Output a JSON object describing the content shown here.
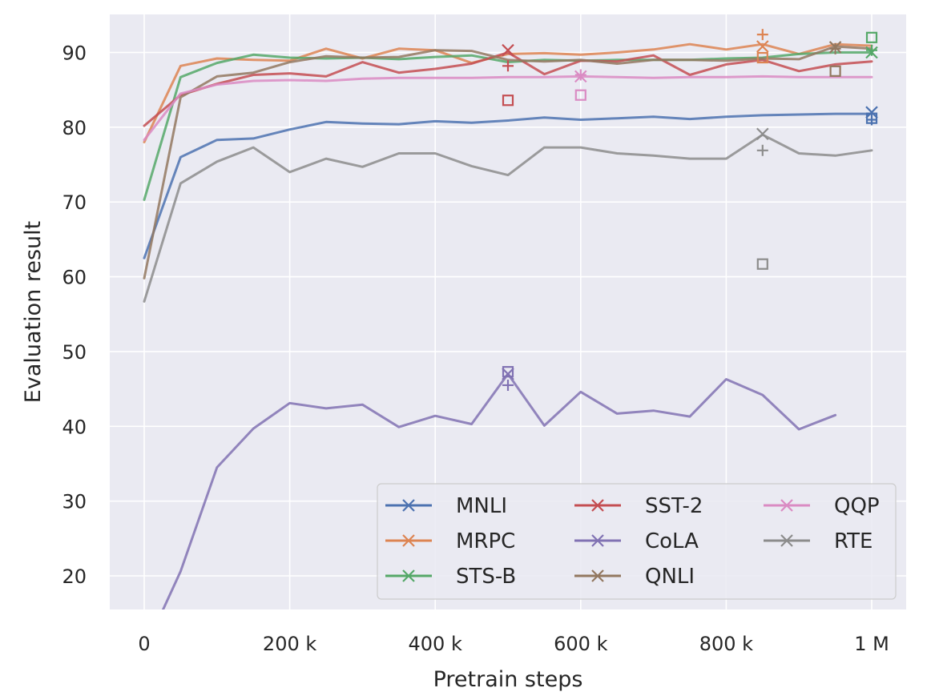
{
  "chart_data": {
    "type": "line",
    "xlabel": "Pretrain steps",
    "ylabel": "Evaluation result",
    "xlim": [
      -50000,
      1050000
    ],
    "ylim": [
      15,
      95
    ],
    "grid": true,
    "legend_position": "lower right",
    "x_ticks": [
      {
        "value": 0,
        "label": "0"
      },
      {
        "value": 200000,
        "label": "200 k"
      },
      {
        "value": 400000,
        "label": "400 k"
      },
      {
        "value": 600000,
        "label": "600 k"
      },
      {
        "value": 800000,
        "label": "800 k"
      },
      {
        "value": 1000000,
        "label": "1 M"
      }
    ],
    "y_ticks": [
      {
        "value": 20,
        "label": "20"
      },
      {
        "value": 30,
        "label": "30"
      },
      {
        "value": 40,
        "label": "40"
      },
      {
        "value": 50,
        "label": "50"
      },
      {
        "value": 60,
        "label": "60"
      },
      {
        "value": 70,
        "label": "70"
      },
      {
        "value": 80,
        "label": "80"
      },
      {
        "value": 90,
        "label": "90"
      }
    ],
    "x": [
      0,
      50000,
      100000,
      150000,
      200000,
      250000,
      300000,
      350000,
      400000,
      450000,
      500000,
      550000,
      600000,
      650000,
      700000,
      750000,
      800000,
      850000,
      900000,
      950000,
      1000000
    ],
    "series": [
      {
        "name": "MNLI",
        "color": "#4c72b0",
        "values": [
          62.5,
          76.0,
          78.3,
          78.5,
          79.7,
          80.7,
          80.5,
          80.4,
          80.8,
          80.6,
          80.9,
          81.3,
          81.0,
          81.2,
          81.4,
          81.1,
          81.4,
          81.6,
          81.7,
          81.8,
          81.8
        ],
        "markers": [
          {
            "x": 1000000,
            "y": 82.0,
            "shape": "x"
          },
          {
            "x": 1000000,
            "y": 81.2,
            "shape": "square"
          },
          {
            "x": 1000000,
            "y": 81.0,
            "shape": "plus"
          }
        ]
      },
      {
        "name": "MRPC",
        "color": "#dd8452",
        "values": [
          78.0,
          88.2,
          89.2,
          89.0,
          88.9,
          90.5,
          89.2,
          90.5,
          90.3,
          88.6,
          89.8,
          89.9,
          89.7,
          90.0,
          90.4,
          91.1,
          90.4,
          91.1,
          89.8,
          91.1,
          90.9
        ],
        "markers": [
          {
            "x": 850000,
            "y": 90.8,
            "shape": "x"
          },
          {
            "x": 850000,
            "y": 89.3,
            "shape": "square"
          },
          {
            "x": 850000,
            "y": 92.4,
            "shape": "plus"
          }
        ]
      },
      {
        "name": "STS-B",
        "color": "#55a868",
        "values": [
          70.3,
          86.7,
          88.6,
          89.7,
          89.3,
          89.2,
          89.3,
          89.1,
          89.4,
          89.6,
          88.7,
          89.0,
          88.9,
          89.0,
          89.0,
          89.0,
          89.2,
          89.3,
          89.8,
          90.0,
          90.0
        ],
        "markers": [
          {
            "x": 1000000,
            "y": 90.0,
            "shape": "x"
          },
          {
            "x": 1000000,
            "y": 92.0,
            "shape": "square"
          },
          {
            "x": 1000000,
            "y": 90.3,
            "shape": "plus"
          }
        ]
      },
      {
        "name": "SST-2",
        "color": "#c44e52",
        "values": [
          80.2,
          84.3,
          85.8,
          87.0,
          87.2,
          86.8,
          88.7,
          87.3,
          87.8,
          88.5,
          90.0,
          87.1,
          88.9,
          88.8,
          89.6,
          87.0,
          88.4,
          89.0,
          87.5,
          88.4,
          88.8
        ],
        "markers": [
          {
            "x": 500000,
            "y": 90.3,
            "shape": "x"
          },
          {
            "x": 500000,
            "y": 83.6,
            "shape": "square"
          },
          {
            "x": 500000,
            "y": 88.2,
            "shape": "plus"
          }
        ]
      },
      {
        "name": "CoLA",
        "color": "#8172b3",
        "values": [
          10.0,
          20.6,
          34.5,
          39.7,
          43.1,
          42.4,
          42.9,
          39.9,
          41.4,
          40.3,
          47.0,
          40.1,
          44.6,
          41.7,
          42.1,
          41.3,
          46.3,
          44.2,
          39.6,
          41.5,
          null
        ],
        "markers": [
          {
            "x": 500000,
            "y": 47.0,
            "shape": "x"
          },
          {
            "x": 500000,
            "y": 47.3,
            "shape": "square"
          },
          {
            "x": 500000,
            "y": 45.5,
            "shape": "plus"
          }
        ]
      },
      {
        "name": "QNLI",
        "color": "#937860",
        "values": [
          59.8,
          84.0,
          86.8,
          87.3,
          88.7,
          89.5,
          89.3,
          89.4,
          90.3,
          90.2,
          89.0,
          88.8,
          89.0,
          88.5,
          89.0,
          89.0,
          88.9,
          89.2,
          89.1,
          90.8,
          90.5
        ],
        "markers": [
          {
            "x": 950000,
            "y": 90.7,
            "shape": "x"
          },
          {
            "x": 950000,
            "y": 87.5,
            "shape": "square"
          },
          {
            "x": 950000,
            "y": 90.5,
            "shape": "plus"
          }
        ]
      },
      {
        "name": "QQP",
        "color": "#da8bc3",
        "values": [
          78.3,
          84.5,
          85.7,
          86.2,
          86.3,
          86.2,
          86.5,
          86.6,
          86.6,
          86.6,
          86.7,
          86.7,
          86.8,
          86.7,
          86.6,
          86.7,
          86.7,
          86.8,
          86.7,
          86.7,
          86.7
        ],
        "markers": [
          {
            "x": 600000,
            "y": 86.8,
            "shape": "x"
          },
          {
            "x": 600000,
            "y": 84.3,
            "shape": "square"
          },
          {
            "x": 600000,
            "y": 87.0,
            "shape": "plus"
          }
        ]
      },
      {
        "name": "RTE",
        "color": "#8c8c8c",
        "values": [
          56.7,
          72.5,
          75.4,
          77.3,
          74.0,
          75.8,
          74.7,
          76.5,
          76.5,
          74.8,
          73.6,
          77.3,
          77.3,
          76.5,
          76.2,
          75.8,
          75.8,
          79.0,
          76.5,
          76.2,
          76.9
        ],
        "markers": [
          {
            "x": 850000,
            "y": 79.1,
            "shape": "x"
          },
          {
            "x": 850000,
            "y": 61.7,
            "shape": "square"
          },
          {
            "x": 850000,
            "y": 76.9,
            "shape": "plus"
          }
        ]
      }
    ]
  }
}
